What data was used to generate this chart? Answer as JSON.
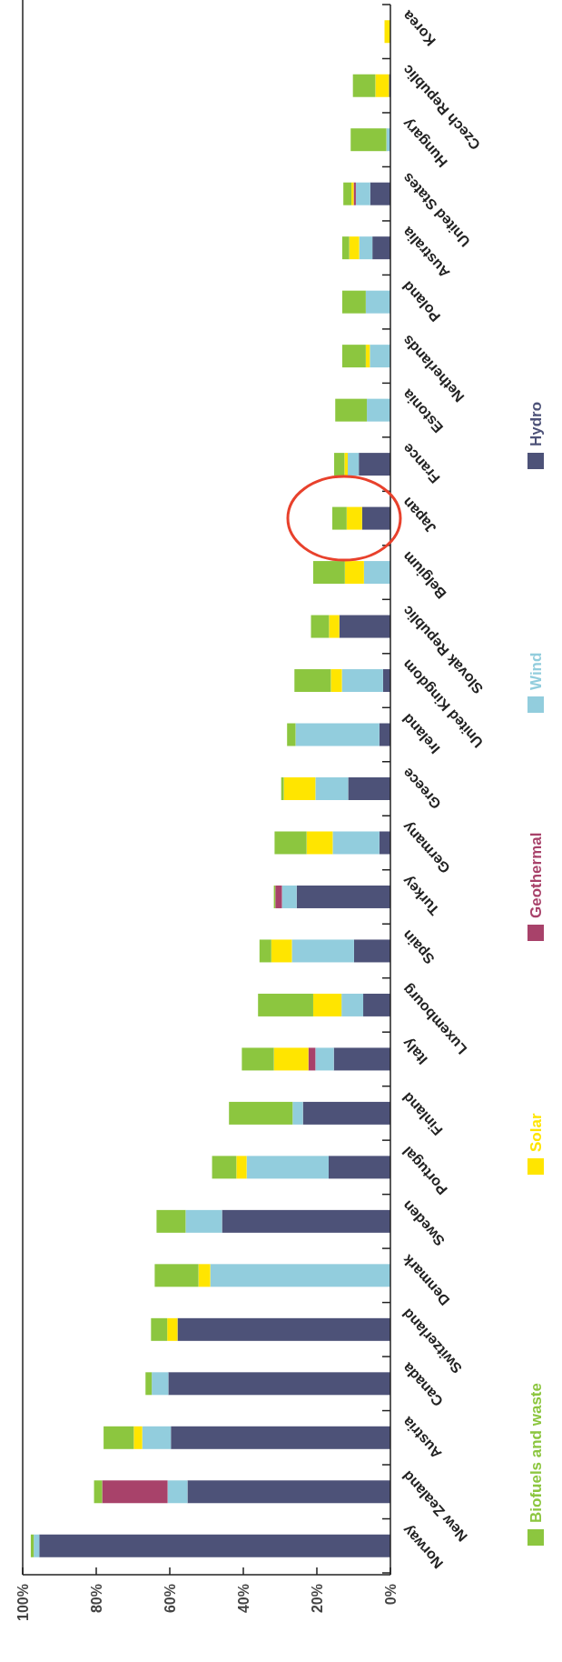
{
  "chart_data": {
    "type": "bar",
    "stacked": true,
    "orientation": "horizontal",
    "legend": "right",
    "categories": [
      "Korea",
      "Czech Republic",
      "Hungary",
      "United States",
      "Australia",
      "Poland",
      "Netherlands",
      "Estonia",
      "France",
      "Japan",
      "Belgium",
      "Slovak Republic",
      "United Kingdom",
      "Ireland",
      "Greece",
      "Germany",
      "Turkey",
      "Spain",
      "Luxembourg",
      "Italy",
      "Finland",
      "Portugal",
      "Sweden",
      "Denmark",
      "Switzerland",
      "Canada",
      "Austria",
      "New Zealand",
      "Norway"
    ],
    "xlim": [
      100,
      0
    ],
    "xticks": [
      {
        "value": 100,
        "label": "100%"
      },
      {
        "value": 80,
        "label": "80%"
      },
      {
        "value": 60,
        "label": "60%"
      },
      {
        "value": 40,
        "label": "40%"
      },
      {
        "value": 20,
        "label": "20%"
      },
      {
        "value": 0,
        "label": "0%"
      }
    ],
    "series": [
      {
        "name": "Hydro",
        "color": "#4d5278",
        "values": [
          0,
          0.4,
          0,
          5.5,
          4.9,
          0,
          0,
          0,
          8.6,
          7.7,
          0,
          13.9,
          2.0,
          3.0,
          11.5,
          3.0,
          25.5,
          9.9,
          7.4,
          15.4,
          23.8,
          16.8,
          45.8,
          0,
          57.9,
          60.4,
          59.7,
          55.2,
          95.5
        ]
      },
      {
        "name": "Wind",
        "color": "#92cddd",
        "values": [
          0,
          0,
          1.1,
          3.9,
          3.6,
          6.7,
          5.6,
          6.4,
          3.0,
          0,
          7.2,
          0,
          11.2,
          22.8,
          8.9,
          12.7,
          4.0,
          16.9,
          5.9,
          5.0,
          2.8,
          22.3,
          9.9,
          49.0,
          0,
          4.5,
          7.8,
          5.4,
          1.5
        ]
      },
      {
        "name": "Geothermal",
        "color": "#a8426a",
        "values": [
          0,
          0,
          0,
          0.6,
          0,
          0,
          0,
          0,
          0,
          0,
          0,
          0,
          0,
          0,
          0,
          0,
          1.8,
          0,
          0,
          1.9,
          0,
          0,
          0,
          0,
          0,
          0,
          0,
          17.8,
          0
        ]
      },
      {
        "name": "Solar",
        "color": "#ffe500",
        "values": [
          1.6,
          3.7,
          0,
          0.6,
          2.7,
          0,
          1.1,
          0,
          0.9,
          4.2,
          5.2,
          2.8,
          3.0,
          0,
          8.6,
          7.1,
          0,
          5.6,
          7.7,
          9.4,
          0,
          2.8,
          0,
          3.2,
          2.8,
          0,
          2.3,
          0,
          0
        ]
      },
      {
        "name": "Biofuels and waste",
        "color": "#8cc63f",
        "values": [
          0,
          6.1,
          9.7,
          2.2,
          1.9,
          6.4,
          6.4,
          8.6,
          2.8,
          3.9,
          8.6,
          4.9,
          9.9,
          2.3,
          0.7,
          8.7,
          0.4,
          3.2,
          15.0,
          8.7,
          17.3,
          6.6,
          7.9,
          11.9,
          4.4,
          1.7,
          8.2,
          2.2,
          0.8
        ]
      }
    ]
  }
}
